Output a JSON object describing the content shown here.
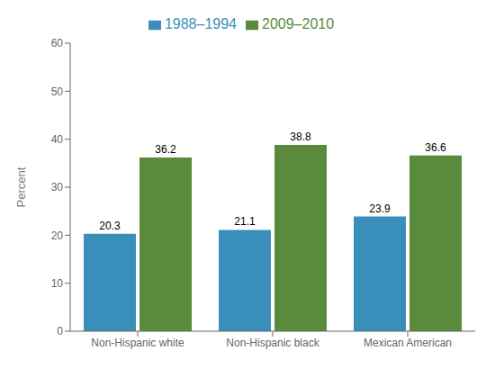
{
  "chart_data": {
    "type": "bar",
    "categories": [
      "Non-Hispanic white",
      "Non-Hispanic black",
      "Mexican American"
    ],
    "series": [
      {
        "name": "1988–1994",
        "color": "#3a8fba",
        "values": [
          20.3,
          21.1,
          23.9
        ]
      },
      {
        "name": "2009–2010",
        "color": "#5a8a3c",
        "values": [
          36.2,
          38.8,
          36.6
        ]
      }
    ],
    "ylabel": "Percent",
    "ylim": [
      0,
      60
    ],
    "yticks": [
      0,
      10,
      20,
      30,
      40,
      50,
      60
    ],
    "grid": false,
    "legend": "top",
    "data_labels": true
  }
}
